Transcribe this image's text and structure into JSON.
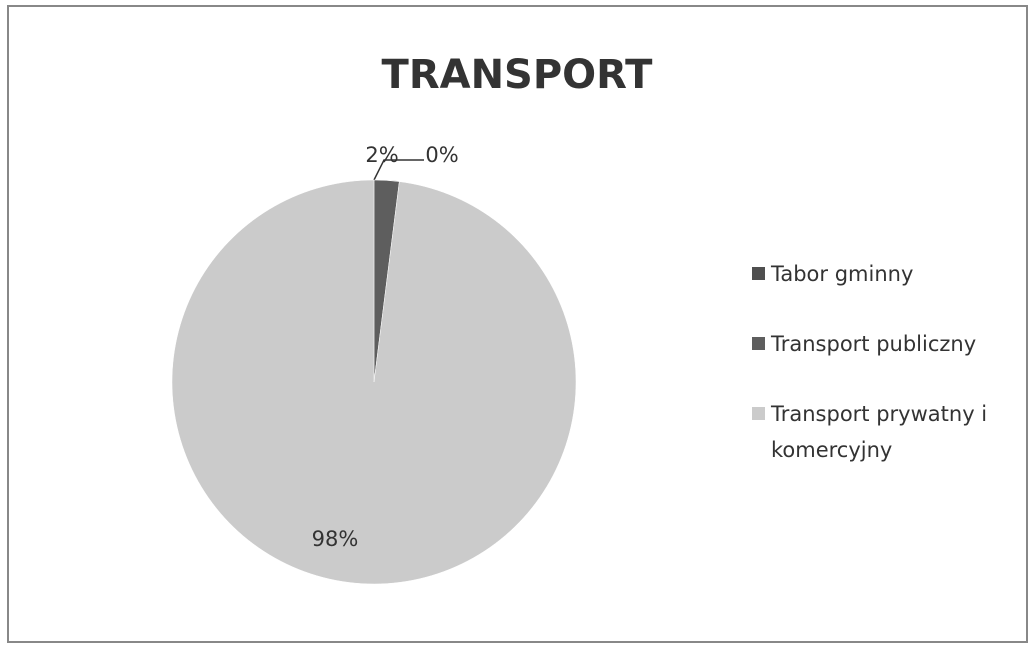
{
  "chart_data": {
    "type": "pie",
    "title": "TRANSPORT",
    "categories": [
      "Tabor gminny",
      "Transport publiczny",
      "Transport prywatny i komercyjny"
    ],
    "values": [
      0,
      2,
      98
    ],
    "value_labels": [
      "0%",
      "2%",
      "98%"
    ],
    "colors": [
      "#4f4f4f",
      "#5e5e5e",
      "#cbcbcb"
    ],
    "legend": "right"
  }
}
